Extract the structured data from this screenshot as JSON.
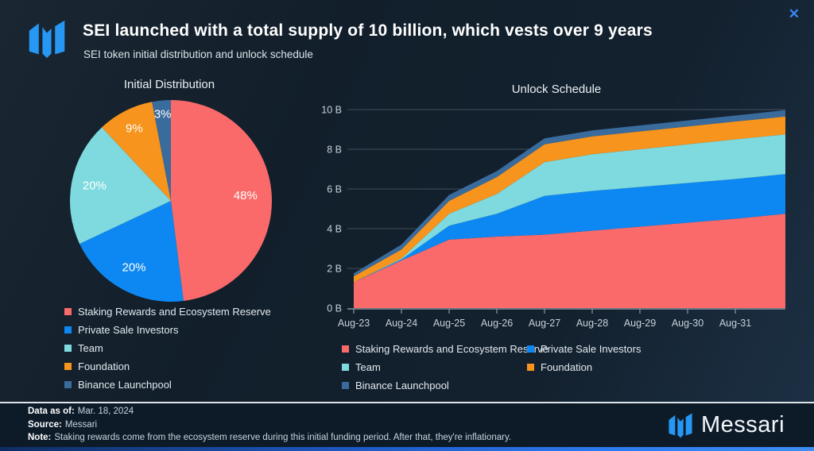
{
  "window": {
    "close_glyph": "✕"
  },
  "header": {
    "title": "SEI launched with a total supply of 10 billion, which vests over 9 years",
    "subtitle": "SEI token initial distribution and unlock schedule"
  },
  "brand_color": "#2697f3",
  "chart_data": [
    {
      "id": "initial-distribution",
      "type": "pie",
      "title": "Initial Distribution",
      "labels": [
        "Staking Rewards and Ecosystem Reserve",
        "Private Sale Investors",
        "Team",
        "Foundation",
        "Binance Launchpool"
      ],
      "values": [
        48,
        20,
        20,
        9,
        3
      ],
      "value_labels": [
        "48%",
        "20%",
        "20%",
        "9%",
        "3%"
      ],
      "colors": [
        "#fa6a6a",
        "#0d88f2",
        "#7edadf",
        "#f7941d",
        "#3a6b9d"
      ],
      "start_angle": "12 o'clock",
      "direction": "clockwise",
      "legend_position": "bottom-left"
    },
    {
      "id": "unlock-schedule",
      "type": "area",
      "stacked": true,
      "title": "Unlock Schedule",
      "x_tick_labels": [
        "Aug-23",
        "Aug-24",
        "Aug-25",
        "Aug-26",
        "Aug-27",
        "Aug-28",
        "Aug-29",
        "Aug-30",
        "Aug-31"
      ],
      "x_note": "series values are sampled at the nine yearly ticks plus one final unlabeled point at the right edge of the plot",
      "y_tick_labels": [
        "0 B",
        "2 B",
        "4 B",
        "6 B",
        "8 B",
        "10 B"
      ],
      "ylim": [
        0,
        10
      ],
      "unit": "billions of tokens",
      "grid": true,
      "series": [
        {
          "name": "Staking Rewards and Ecosystem Reserve",
          "color": "#fa6a6a",
          "values": [
            1.3,
            2.4,
            3.45,
            3.6,
            3.7,
            3.9,
            4.1,
            4.3,
            4.5,
            4.75
          ]
        },
        {
          "name": "Private Sale Investors",
          "color": "#0d88f2",
          "values": [
            0,
            0.05,
            0.7,
            1.15,
            1.95,
            2,
            2,
            2,
            2,
            2
          ]
        },
        {
          "name": "Team",
          "color": "#7edadf",
          "values": [
            0,
            0.05,
            0.6,
            1.0,
            1.7,
            1.85,
            1.9,
            1.95,
            2,
            2
          ]
        },
        {
          "name": "Foundation",
          "color": "#f7941d",
          "values": [
            0.3,
            0.45,
            0.65,
            0.85,
            0.9,
            0.9,
            0.9,
            0.9,
            0.9,
            0.9
          ]
        },
        {
          "name": "Binance Launchpool",
          "color": "#3a6b9d",
          "values": [
            0.15,
            0.25,
            0.3,
            0.3,
            0.3,
            0.3,
            0.3,
            0.3,
            0.3,
            0.32
          ]
        }
      ],
      "legend_columns": [
        [
          0,
          2,
          4
        ],
        [
          1,
          3
        ]
      ],
      "legend_position": "bottom"
    }
  ],
  "footer": {
    "data_as_of_label": "Data as of:",
    "data_as_of_value": "Mar. 18, 2024",
    "source_label": "Source:",
    "source_value": "Messari",
    "note_label": "Note:",
    "note_value": "Staking rewards come from the ecosystem reserve during this initial funding period. After that, they're inflationary.",
    "brand": "Messari"
  }
}
